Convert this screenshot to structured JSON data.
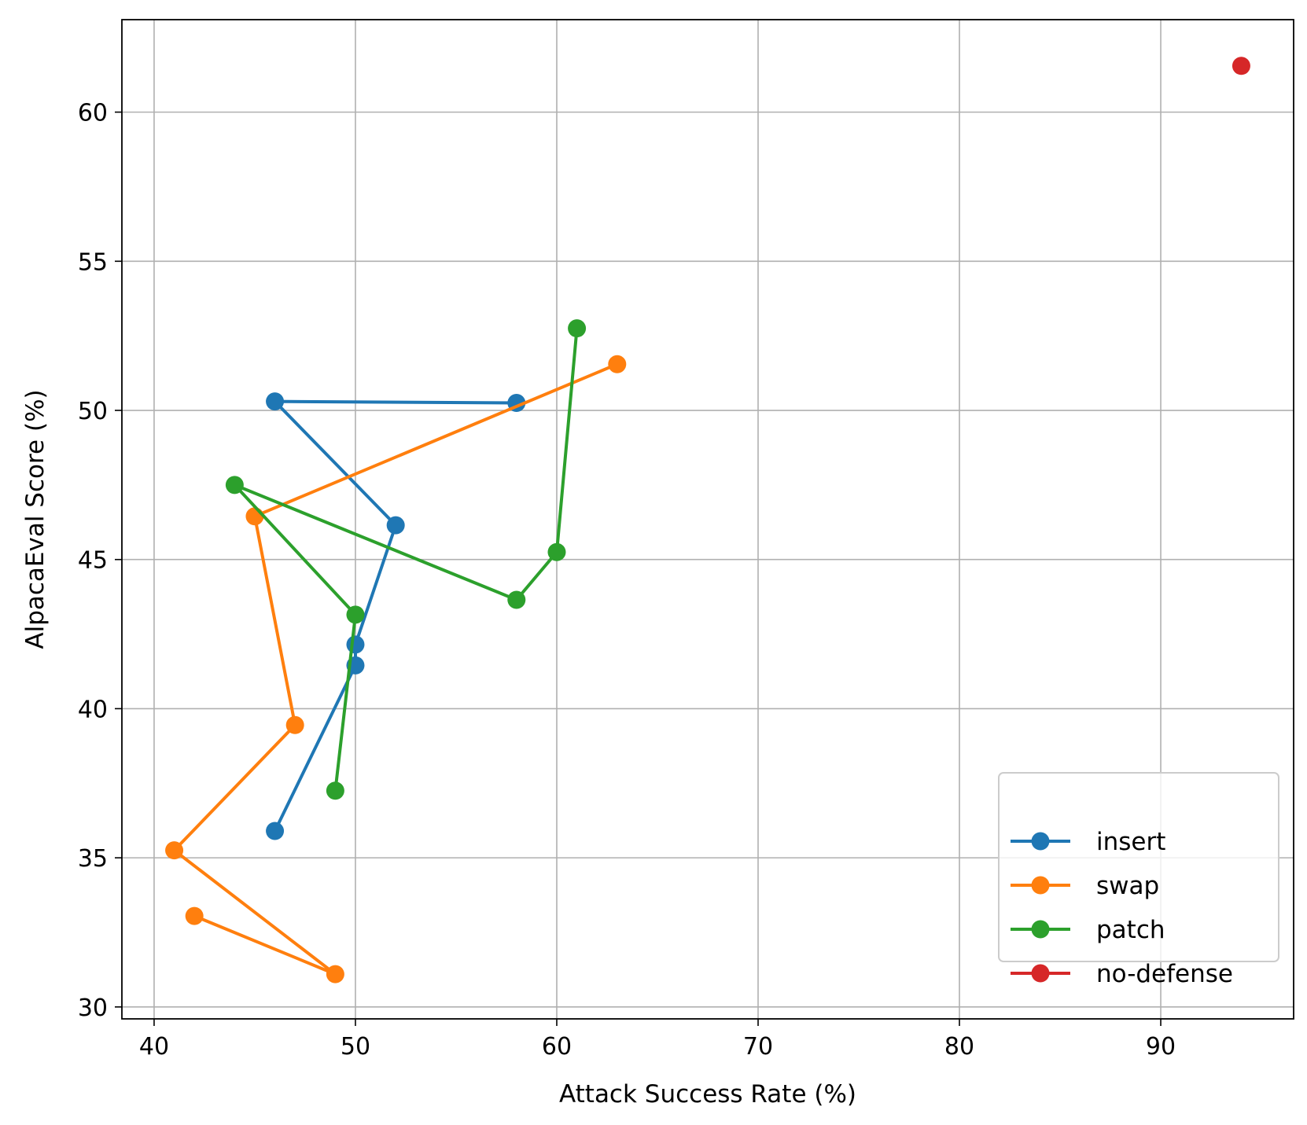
{
  "chart_data": {
    "type": "line",
    "title": "",
    "xlabel": "Attack Success Rate (%)",
    "ylabel": "AlpacaEval Score (%)",
    "xlim": [
      38.4,
      96.6
    ],
    "ylim": [
      29.6,
      63.1
    ],
    "xticks": [
      40,
      50,
      60,
      70,
      80,
      90
    ],
    "yticks": [
      30,
      35,
      40,
      45,
      50,
      55,
      60
    ],
    "grid": true,
    "legend_position": "lower right",
    "series": [
      {
        "name": "insert",
        "color": "#1f77b4",
        "marker": "circle",
        "x": [
          58,
          46,
          52,
          50,
          50,
          46
        ],
        "y": [
          50.25,
          50.3,
          46.15,
          42.15,
          41.45,
          35.9
        ]
      },
      {
        "name": "swap",
        "color": "#ff7f0e",
        "marker": "circle",
        "x": [
          63,
          45,
          47,
          41,
          49,
          42
        ],
        "y": [
          51.55,
          46.45,
          39.45,
          35.25,
          31.1,
          33.05
        ]
      },
      {
        "name": "patch",
        "color": "#2ca02c",
        "marker": "circle",
        "x": [
          49,
          50,
          44,
          58,
          60,
          61
        ],
        "y": [
          37.25,
          43.15,
          47.5,
          43.65,
          45.25,
          52.75
        ]
      },
      {
        "name": "no-defense",
        "color": "#d62728",
        "marker": "circle",
        "x": [
          94
        ],
        "y": [
          61.55
        ]
      }
    ]
  }
}
